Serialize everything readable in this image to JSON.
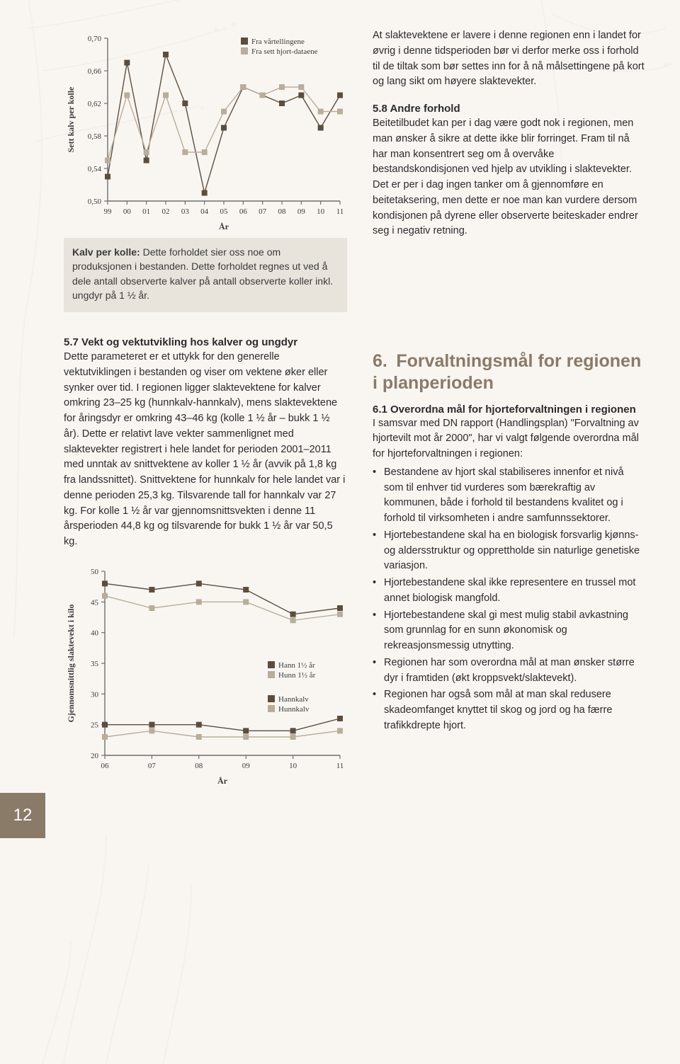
{
  "page_number": "12",
  "background_color": "#f9f6f2",
  "decor_color": "#d9cdbf",
  "chart1": {
    "type": "line",
    "ylabel": "Sett kalv per kolle",
    "xlabel": "År",
    "x_categories": [
      "99",
      "00",
      "01",
      "02",
      "03",
      "04",
      "05",
      "06",
      "07",
      "08",
      "09",
      "10",
      "11"
    ],
    "ylim": [
      0.5,
      0.7
    ],
    "yticks": [
      "0,50",
      "0,54",
      "0,58",
      "0,62",
      "0,66",
      "0,70"
    ],
    "ytick_values": [
      0.5,
      0.54,
      0.58,
      0.62,
      0.66,
      0.7
    ],
    "axis_color": "#6e6e6e",
    "tick_fontsize": 11,
    "label_fontsize": 12,
    "marker": "square",
    "marker_size": 8,
    "line_width": 1.4,
    "legend": [
      {
        "label": "Fra vårtellingene",
        "color": "#5b4e3f"
      },
      {
        "label": "Fra sett hjort-dataene",
        "color": "#b9ad9b"
      }
    ],
    "series": [
      {
        "name": "Fra vårtellingene",
        "color": "#5b4e3f",
        "values": [
          0.53,
          0.67,
          0.55,
          0.68,
          0.62,
          0.51,
          0.59,
          0.64,
          0.63,
          0.62,
          0.63,
          0.59,
          0.63
        ]
      },
      {
        "name": "Fra sett hjort-dataene",
        "color": "#b9ad9b",
        "values": [
          0.55,
          0.63,
          0.56,
          0.63,
          0.56,
          0.56,
          0.61,
          0.64,
          0.63,
          0.64,
          0.64,
          0.61,
          0.61
        ]
      }
    ]
  },
  "chart1_caption": {
    "lead": "Kalv per kolle:",
    "text": " Dette forholdet sier oss noe om produksjonen i bestanden. Dette forholdet regnes ut ved å dele antall observerte kalver på antall observerte koller inkl. ungdyr på 1 ½ år."
  },
  "right_top_para": "At slaktevektene er lavere i denne regionen enn i landet for øvrig i denne tidsperioden bør vi derfor merke oss i forhold til de tiltak som bør settes inn for å nå målsettingene på kort og lang sikt om høyere slaktevekter.",
  "sec58_title": "5.8 Andre forhold",
  "sec58_text": "Beitetilbudet kan per i dag være godt nok i regionen, men man ønsker å sikre at dette ikke blir forringet. Fram til nå har man konsentrert seg om å overvåke bestandskondisjonen ved hjelp av utvikling i slaktevekter. Det er per i dag ingen tanker om å gjennomføre en beitetaksering, men dette er noe man kan vurdere dersom kondisjonen på dyrene eller observerte beiteskader endrer seg i negativ retning.",
  "sec57_title": "5.7 Vekt og vektutvikling hos kalver og ungdyr",
  "sec57_text": "Dette parameteret er et uttykk for den generelle vektutviklingen i bestanden og viser om vektene øker eller synker over tid. I regionen ligger slaktevektene for kalver omkring 23–25 kg (hunnkalv-hannkalv), mens slaktevektene for åringsdyr er omkring 43–46 kg (kolle 1 ½ år – bukk 1 ½ år). Dette er relativt lave vekter sammenlignet med slaktevekter registrert i hele landet for perioden  2001–2011 med unntak av snittvektene av koller 1 ½ år (avvik på 1,8 kg fra landssnittet). Snittvektene for hunnkalv for hele landet var i denne perioden 25,3 kg. Tilsvarende tall for hannkalv var 27 kg. For kolle 1 ½ år var gjennomsnittsvekten i denne 11 årsperioden 44,8 kg og tilsvarende for bukk 1 ½ år var 50,5 kg.",
  "chart2": {
    "type": "line",
    "ylabel": "Gjennomsnittlig slaktevekt i kilo",
    "xlabel": "År",
    "x_categories": [
      "06",
      "07",
      "08",
      "09",
      "10",
      "11"
    ],
    "ylim": [
      20,
      50
    ],
    "yticks": [
      "20",
      "25",
      "30",
      "35",
      "40",
      "45",
      "50"
    ],
    "ytick_values": [
      20,
      25,
      30,
      35,
      40,
      45,
      50
    ],
    "axis_color": "#6e6e6e",
    "tick_fontsize": 11,
    "label_fontsize": 12,
    "marker": "square",
    "marker_size": 8,
    "line_width": 1.4,
    "legend": [
      {
        "label": "Hann 1½ år",
        "color": "#5b4e3f"
      },
      {
        "label": "Hunn 1½ år",
        "color": "#b9ad9b"
      },
      {
        "label": "Hannkalv",
        "color": "#5b4e3f"
      },
      {
        "label": "Hunnkalv",
        "color": "#b9ad9b"
      }
    ],
    "series": [
      {
        "name": "Hann 1½ år",
        "color": "#5b4e3f",
        "values": [
          48,
          47,
          48,
          47,
          43,
          44
        ]
      },
      {
        "name": "Hunn 1½ år",
        "color": "#b9ad9b",
        "values": [
          46,
          44,
          45,
          45,
          42,
          43
        ]
      },
      {
        "name": "Hannkalv",
        "color": "#5b4e3f",
        "values": [
          25,
          25,
          25,
          24,
          24,
          26
        ]
      },
      {
        "name": "Hunnkalv",
        "color": "#b9ad9b",
        "values": [
          23,
          24,
          23,
          23,
          23,
          24
        ]
      }
    ]
  },
  "sec6_heading": "6. Forvaltningsmål for regionen i planperioden",
  "sec61_title": "6.1 Overordna mål for hjorteforvaltningen i regionen",
  "sec61_intro": "I samsvar med DN rapport (Handlingsplan) \"Forvaltning av hjortevilt mot år 2000\", har vi valgt følgende overordna mål for hjorteforvaltningen i regionen:",
  "sec61_bullets": [
    "Bestandene av hjort skal stabiliseres innenfor et nivå som til enhver tid vurderes som bærekraftig av kommunen, både i forhold til bestandens kvalitet og i forhold til virksomheten i andre samfunnssektorer.",
    "Hjortebestandene skal ha en biologisk forsvarlig kjønns- og aldersstruktur og opprettholde sin naturlige genetiske variasjon.",
    "Hjortebestandene skal ikke representere en trussel mot annet biologisk mangfold.",
    "Hjortebestandene skal gi mest mulig stabil avkastning som grunnlag for en sunn økonomisk og rekreasjonsmessig utnytting.",
    "Regionen har som overordna mål at man ønsker større dyr i framtiden (økt kroppsvekt/slaktevekt).",
    " Regionen har også som mål at man skal redusere skadeomfanget knyttet til skog og jord og ha færre trafikkdrepte hjort."
  ]
}
